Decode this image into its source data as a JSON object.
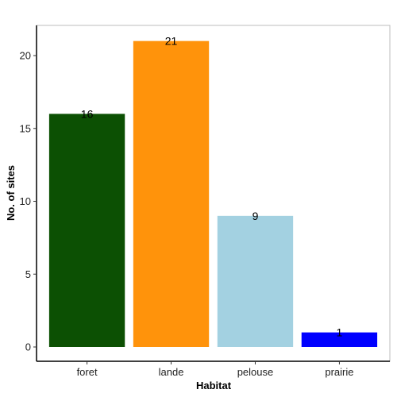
{
  "chart_data": {
    "type": "bar",
    "title": "",
    "xlabel": "Habitat",
    "ylabel": "No. of sites",
    "categories": [
      "foret",
      "lande",
      "pelouse",
      "prairie"
    ],
    "values": [
      16,
      21,
      9,
      1
    ],
    "data_labels": [
      "16",
      "21",
      "9",
      "1"
    ],
    "colors": [
      "#0c5003",
      "#ff930b",
      "#a3d1e1",
      "#0000ff"
    ],
    "ylim": [
      0,
      22
    ],
    "y_ticks": [
      0,
      5,
      10,
      15,
      20
    ],
    "grid": false,
    "legend": "none"
  }
}
